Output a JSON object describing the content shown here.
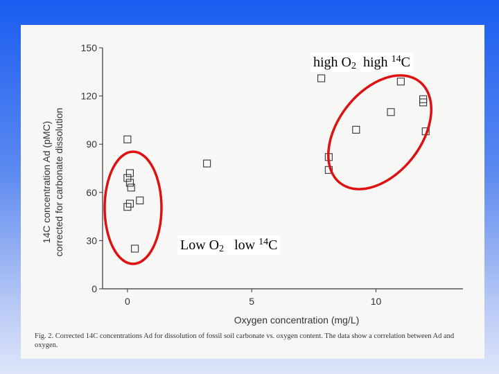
{
  "chart_data": {
    "type": "scatter",
    "xlabel": "Oxygen concentration (mg/L)",
    "ylabel_line1": "14C concentration Ad (pMC)",
    "ylabel_line2": "corrected for carbonate dissolution",
    "xlim": [
      -1,
      13.5
    ],
    "ylim": [
      0,
      150
    ],
    "xticks": [
      0,
      5,
      10
    ],
    "yticks": [
      0,
      30,
      60,
      90,
      120,
      150
    ],
    "grid": false,
    "series": [
      {
        "marker": "open-square",
        "points": [
          {
            "x": 0.0,
            "y": 93
          },
          {
            "x": 0.0,
            "y": 69
          },
          {
            "x": 0.1,
            "y": 72
          },
          {
            "x": 0.1,
            "y": 66
          },
          {
            "x": 0.15,
            "y": 63
          },
          {
            "x": 0.1,
            "y": 53
          },
          {
            "x": 0.0,
            "y": 51
          },
          {
            "x": 0.5,
            "y": 55
          },
          {
            "x": 0.3,
            "y": 25
          },
          {
            "x": 3.2,
            "y": 78
          },
          {
            "x": 7.8,
            "y": 131
          },
          {
            "x": 8.1,
            "y": 82
          },
          {
            "x": 8.1,
            "y": 74
          },
          {
            "x": 9.2,
            "y": 99
          },
          {
            "x": 10.6,
            "y": 110
          },
          {
            "x": 11.0,
            "y": 129
          },
          {
            "x": 11.9,
            "y": 118
          },
          {
            "x": 11.9,
            "y": 116
          },
          {
            "x": 12.0,
            "y": 98
          }
        ]
      }
    ]
  },
  "annotations": {
    "high": {
      "label_text": "high O",
      "o_sub": "2",
      "label_gap": "  high ",
      "c_sup": "14",
      "c_letter": "C"
    },
    "low": {
      "label_text": "Low O",
      "o_sub": "2",
      "label_gap": "   low ",
      "c_sup": "14",
      "c_letter": "C"
    },
    "ellipse_color": "#dd1111"
  },
  "caption": "Fig. 2. Corrected 14C concentrations Ad for dissolution of fossil soil carbonate vs. oxygen content. The data show a correlation between Ad and oxygen."
}
